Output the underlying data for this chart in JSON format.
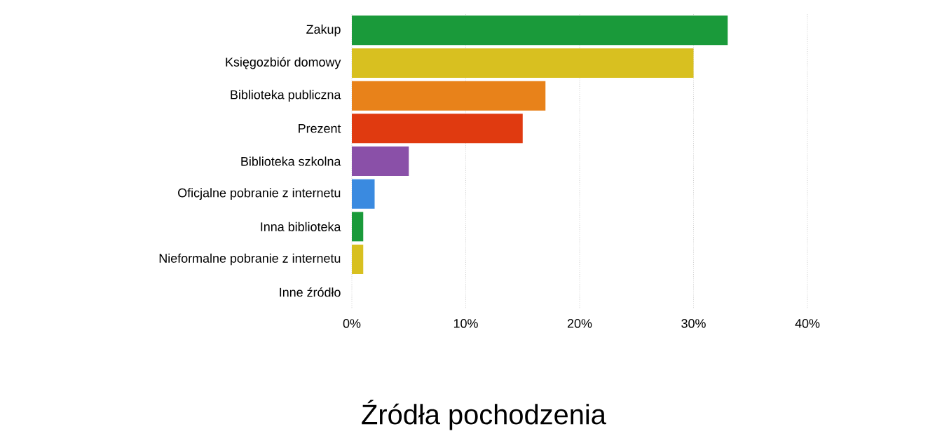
{
  "chart_data": {
    "type": "bar",
    "orientation": "horizontal",
    "title": "Źródła pochodzenia",
    "categories": [
      "Zakup",
      "Księgozbiór domowy",
      "Biblioteka publiczna",
      "Prezent",
      "Biblioteka szkolna",
      "Oficjalne pobranie z internetu",
      "Inna biblioteka",
      "Nieformalne pobranie z internetu",
      "Inne źródło"
    ],
    "values": [
      33,
      30,
      17,
      15,
      5,
      2,
      1,
      1,
      0
    ],
    "colors": [
      "#1a9a3a",
      "#d8c020",
      "#e8821a",
      "#e03a10",
      "#8a50a8",
      "#3a8ae0",
      "#1a9a3a",
      "#d8c020",
      "#8a50a8"
    ],
    "xlim": [
      0,
      40
    ],
    "xticks": [
      {
        "value": 0,
        "label": "0%"
      },
      {
        "value": 10,
        "label": "10%"
      },
      {
        "value": 20,
        "label": "20%"
      },
      {
        "value": 30,
        "label": "30%"
      },
      {
        "value": 40,
        "label": "40%"
      }
    ],
    "grid": "x"
  }
}
